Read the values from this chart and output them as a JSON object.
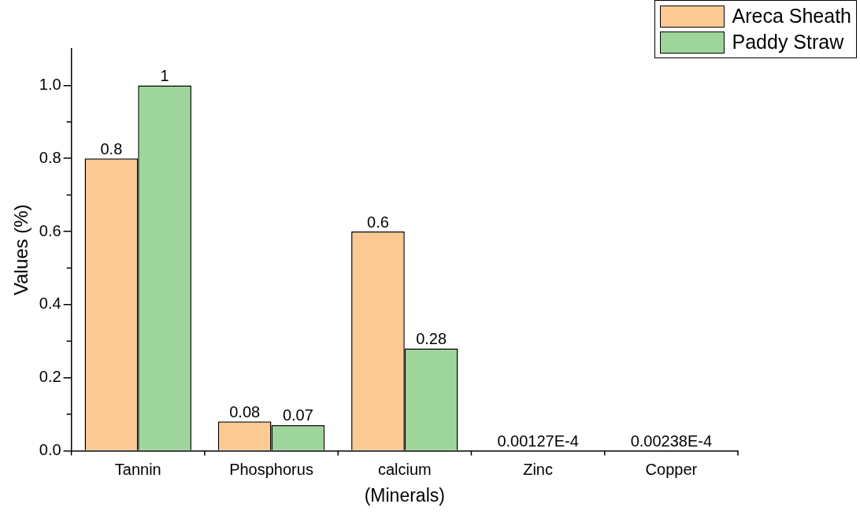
{
  "chart_data": {
    "type": "bar",
    "xlabel": "(Minerals)",
    "ylabel": "Values (%)",
    "categories": [
      "Tannin",
      "Phosphorus",
      "calcium",
      "Zinc",
      "Copper"
    ],
    "series": [
      {
        "name": "Areca Sheath",
        "color": "#fdca93",
        "values": [
          0.8,
          0.08,
          0.6,
          1.27e-07,
          2.38e-07
        ],
        "value_labels": [
          "0.8",
          "0.08",
          "0.6",
          "0.00127E-4",
          "0.00238E-4"
        ]
      },
      {
        "name": "Paddy Straw",
        "color": "#9dd59a",
        "values": [
          1,
          0.07,
          0.28,
          null,
          null
        ],
        "value_labels": [
          "1",
          "0.07",
          "0.28",
          null,
          null
        ]
      }
    ],
    "ylim": [
      0,
      1.1
    ],
    "yticks": [
      {
        "value": 0,
        "label": "0.0"
      },
      {
        "value": 0.2,
        "label": "0.2"
      },
      {
        "value": 0.4,
        "label": "0.4"
      },
      {
        "value": 0.6,
        "label": "0.6"
      },
      {
        "value": 0.8,
        "label": "0.8"
      },
      {
        "value": 1,
        "label": "1.0"
      }
    ],
    "grid": false,
    "legend": "top right"
  }
}
